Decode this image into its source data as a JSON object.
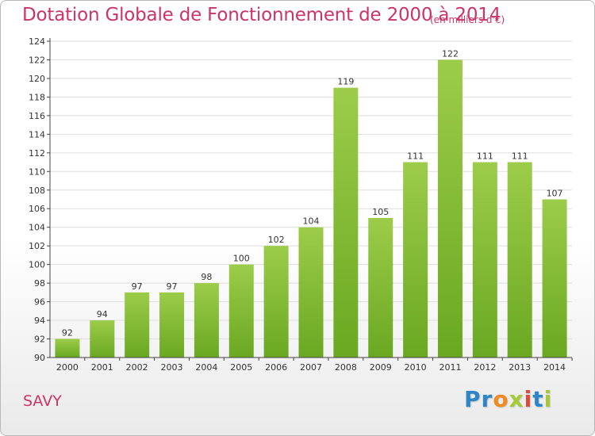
{
  "title": "Dotation Globale de Fonctionnement de 2000 à 2014",
  "subtitle": "(en milliers d'€)",
  "commune": "SAVY",
  "logo_letters": [
    "P",
    "r",
    "o",
    "x",
    "i",
    "t",
    "i"
  ],
  "colors": {
    "title": "#cc3366",
    "bar_top": "#9ccc4a",
    "bar_bottom": "#6aa822",
    "grid": "#dddddd",
    "axis": "#444444"
  },
  "chart_data": {
    "type": "bar",
    "categories": [
      "2000",
      "2001",
      "2002",
      "2003",
      "2004",
      "2005",
      "2006",
      "2007",
      "2008",
      "2009",
      "2010",
      "2011",
      "2012",
      "2013",
      "2014"
    ],
    "values": [
      92,
      94,
      97,
      97,
      98,
      100,
      102,
      104,
      119,
      105,
      111,
      122,
      111,
      111,
      107
    ],
    "ylim": [
      90,
      124
    ],
    "yticks": [
      90,
      92,
      94,
      96,
      98,
      100,
      102,
      104,
      106,
      108,
      110,
      112,
      114,
      116,
      118,
      120,
      122,
      124
    ],
    "grid": true,
    "xlabel": "",
    "ylabel": ""
  }
}
